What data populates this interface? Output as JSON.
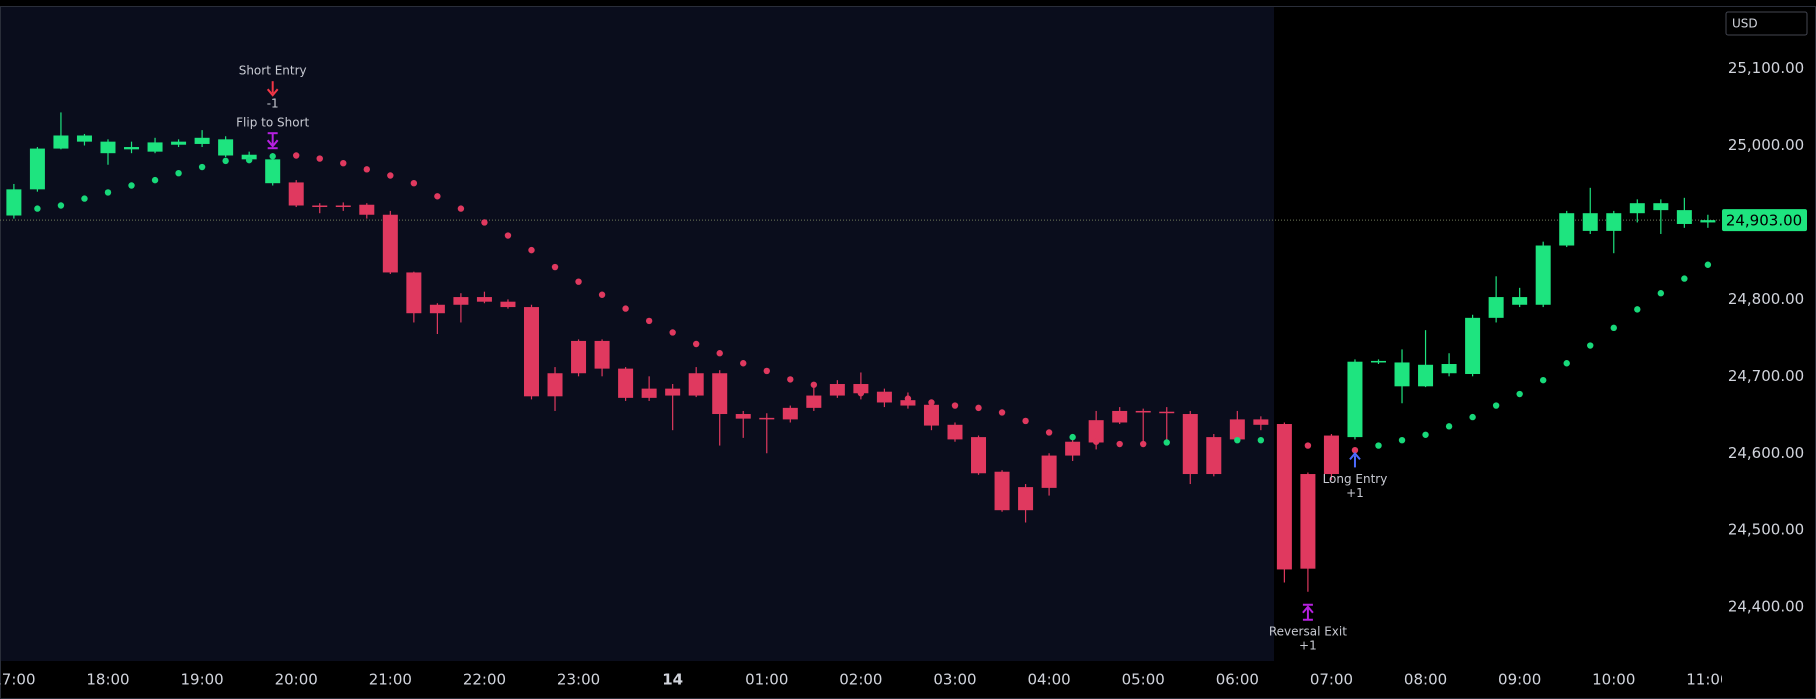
{
  "chart_data": {
    "type": "candlestick",
    "currency": "USD",
    "xlim": [
      -0.59,
      72.6
    ],
    "ylim": [
      24330,
      25180
    ],
    "grid": false,
    "xticks": [
      {
        "value": 0,
        "label": "17:00"
      },
      {
        "value": 4,
        "label": "18:00"
      },
      {
        "value": 8,
        "label": "19:00"
      },
      {
        "value": 12,
        "label": "20:00"
      },
      {
        "value": 16,
        "label": "21:00"
      },
      {
        "value": 20,
        "label": "22:00"
      },
      {
        "value": 24,
        "label": "23:00"
      },
      {
        "value": 28,
        "label": "14"
      },
      {
        "value": 32,
        "label": "01:00"
      },
      {
        "value": 36,
        "label": "02:00"
      },
      {
        "value": 40,
        "label": "03:00"
      },
      {
        "value": 44,
        "label": "04:00"
      },
      {
        "value": 48,
        "label": "05:00"
      },
      {
        "value": 52,
        "label": "06:00"
      },
      {
        "value": 56,
        "label": "07:00"
      },
      {
        "value": 60,
        "label": "08:00"
      },
      {
        "value": 64,
        "label": "09:00"
      },
      {
        "value": 68,
        "label": "10:00"
      },
      {
        "value": 72,
        "label": "11:00"
      }
    ],
    "yticks": [
      {
        "value": 24400,
        "label": "24,400.00"
      },
      {
        "value": 24500,
        "label": "24,500.00"
      },
      {
        "value": 24600,
        "label": "24,600.00"
      },
      {
        "value": 24700,
        "label": "24,700.00"
      },
      {
        "value": 24800,
        "label": "24,800.00"
      },
      {
        "value": 24900,
        "label": "24,900.00"
      },
      {
        "value": 25000,
        "label": "25,000.00"
      },
      {
        "value": 25100,
        "label": "25,100.00"
      }
    ],
    "open": [
      24909,
      24943,
      24996,
      25005,
      24990,
      24995,
      24992,
      25001,
      25002,
      24987,
      24982,
      24951,
      24952,
      24922,
      24922,
      24923,
      24910,
      24835,
      24793,
      24803,
      24803,
      24797,
      24790,
      24704,
      24746,
      24746,
      24710,
      24684,
      24684,
      24704,
      24704,
      24651,
      24646,
      24659,
      24675,
      24690,
      24690,
      24680,
      24669,
      24663,
      24637,
      24621,
      24576,
      24556,
      24555,
      24597,
      24614,
      24655,
      24655,
      24654,
      24651,
      24621,
      24644,
      24644,
      24638,
      24573,
      24573,
      24621,
      24718,
      24718,
      24715,
      24704,
      24703,
      24776,
      24793,
      24793,
      24870,
      24889,
      24912,
      24912,
      24925,
      24916,
      24900
    ],
    "high": [
      24950,
      24998,
      25043,
      25015,
      25008,
      25005,
      25010,
      25008,
      25020,
      25012,
      24992,
      24990,
      24955,
      24925,
      24926,
      24925,
      24915,
      24836,
      24795,
      24808,
      24810,
      24800,
      24793,
      24712,
      24748,
      24748,
      24712,
      24700,
      24690,
      24712,
      24708,
      24655,
      24652,
      24662,
      24685,
      24695,
      24705,
      24684,
      24679,
      24668,
      24640,
      24623,
      24578,
      24560,
      24600,
      24625,
      24655,
      24660,
      24658,
      24660,
      24655,
      24625,
      24655,
      24648,
      24640,
      24575,
      24625,
      24722,
      24722,
      24735,
      24760,
      24730,
      24780,
      24830,
      24815,
      24875,
      24915,
      24945,
      24915,
      24930,
      24930,
      24932,
      24910
    ],
    "low": [
      24905,
      24940,
      24995,
      25000,
      24975,
      24990,
      24990,
      24998,
      24998,
      24985,
      24980,
      24948,
      24920,
      24912,
      24915,
      24905,
      24833,
      24770,
      24755,
      24770,
      24795,
      24788,
      24670,
      24655,
      24700,
      24700,
      24668,
      24668,
      24630,
      24673,
      24610,
      24620,
      24600,
      24640,
      24655,
      24672,
      24670,
      24660,
      24658,
      24630,
      24615,
      24572,
      24524,
      24510,
      24545,
      24590,
      24605,
      24638,
      24610,
      24615,
      24560,
      24570,
      24615,
      24630,
      24432,
      24420,
      24565,
      24618,
      24716,
      24665,
      24686,
      24700,
      24700,
      24770,
      24790,
      24790,
      24868,
      24885,
      24860,
      24900,
      24885,
      24893,
      24893
    ],
    "close": [
      24943,
      24996,
      25013,
      25013,
      25005,
      24998,
      25004,
      25005,
      25010,
      25008,
      24988,
      24982,
      24922,
      24921,
      24921,
      24910,
      24835,
      24782,
      24782,
      24793,
      24797,
      24790,
      24674,
      24674,
      24704,
      24710,
      24672,
      24672,
      24675,
      24675,
      24651,
      24645,
      24644,
      24644,
      24659,
      24675,
      24678,
      24666,
      24662,
      24636,
      24618,
      24574,
      24526,
      24526,
      24597,
      24615,
      24643,
      24640,
      24653,
      24653,
      24573,
      24573,
      24618,
      24637,
      24449,
      24450,
      24623,
      24719,
      24720,
      24687,
      24687,
      24716,
      24776,
      24803,
      24803,
      24870,
      24912,
      24912,
      24889,
      24925,
      24916,
      24898,
      24903
    ],
    "colors": [
      "#1ee47f",
      "#1ee47f",
      "#1ee47f",
      "#1ee47f",
      "#1ee47f",
      "#1ee47f",
      "#1ee47f",
      "#1ee47f",
      "#1ee47f",
      "#1ee47f",
      "#1ee47f",
      "#1ee47f",
      "#e0395f",
      "#e0395f",
      "#e0395f",
      "#e0395f",
      "#e0395f",
      "#e0395f",
      "#e0395f",
      "#e0395f",
      "#e0395f",
      "#e0395f",
      "#e0395f",
      "#e0395f",
      "#e0395f",
      "#e0395f",
      "#e0395f",
      "#e0395f",
      "#e0395f",
      "#e0395f",
      "#e0395f",
      "#e0395f",
      "#e0395f",
      "#e0395f",
      "#e0395f",
      "#e0395f",
      "#e0395f",
      "#e0395f",
      "#e0395f",
      "#e0395f",
      "#e0395f",
      "#e0395f",
      "#e0395f",
      "#e0395f",
      "#e0395f",
      "#e0395f",
      "#e0395f",
      "#e0395f",
      "#e0395f",
      "#e0395f",
      "#e0395f",
      "#e0395f",
      "#e0395f",
      "#e0395f",
      "#e0395f",
      "#e0395f",
      "#e0395f",
      "#1ee47f",
      "#1ee47f",
      "#1ee47f",
      "#1ee47f",
      "#1ee47f",
      "#1ee47f",
      "#1ee47f",
      "#1ee47f",
      "#1ee47f",
      "#1ee47f",
      "#1ee47f",
      "#1ee47f",
      "#1ee47f",
      "#1ee47f",
      "#1ee47f",
      "#1ee47f"
    ],
    "sar": {
      "values": [
        null,
        24918,
        24922,
        24931,
        24939,
        24948,
        24955,
        24964,
        24972,
        24980,
        24981,
        24986,
        24987,
        24983,
        24977,
        24969,
        24961,
        24951,
        24934,
        24918,
        24900,
        24883,
        24864,
        24842,
        24823,
        24806,
        24788,
        24772,
        24757,
        24742,
        24730,
        24717,
        24707,
        24696,
        24689,
        24683,
        24678,
        24675,
        24671,
        24666,
        24662,
        24659,
        24653,
        24642,
        24627,
        24621,
        24615,
        24612,
        24612,
        24614,
        null,
        null,
        24617,
        24617,
        null,
        24610,
        24608,
        24604,
        24610,
        24617,
        24624,
        24635,
        24647,
        24662,
        24677,
        24695,
        24717,
        24740,
        24763,
        24787,
        24808,
        24827,
        24845
      ],
      "colors": [
        null,
        "#18d97a",
        "#18d97a",
        "#18d97a",
        "#18d97a",
        "#18d97a",
        "#18d97a",
        "#18d97a",
        "#18d97a",
        "#18d97a",
        "#18d97a",
        "#18d97a",
        "#e0395f",
        "#e0395f",
        "#e0395f",
        "#e0395f",
        "#e0395f",
        "#e0395f",
        "#e0395f",
        "#e0395f",
        "#e0395f",
        "#e0395f",
        "#e0395f",
        "#e0395f",
        "#e0395f",
        "#e0395f",
        "#e0395f",
        "#e0395f",
        "#e0395f",
        "#e0395f",
        "#e0395f",
        "#e0395f",
        "#e0395f",
        "#e0395f",
        "#e0395f",
        "#e0395f",
        "#e0395f",
        "#e0395f",
        "#e0395f",
        "#e0395f",
        "#e0395f",
        "#e0395f",
        "#e0395f",
        "#e0395f",
        "#e0395f",
        "#18d97a",
        "#e0395f",
        "#e0395f",
        "#e0395f",
        "#18d97a",
        null,
        null,
        "#18d97a",
        "#18d97a",
        null,
        "#e0395f",
        "#e0395f",
        "#e0395f",
        "#18d97a",
        "#18d97a",
        "#18d97a",
        "#18d97a",
        "#18d97a",
        "#18d97a",
        "#18d97a",
        "#18d97a",
        "#18d97a",
        "#18d97a",
        "#18d97a",
        "#18d97a",
        "#18d97a",
        "#18d97a",
        "#18d97a"
      ]
    },
    "last_price": {
      "value": 24903,
      "label": "24,903.00"
    },
    "signals": [
      {
        "x": 11,
        "place": "above",
        "marker": "arrow",
        "color": "#f23645",
        "texts": [
          "Short Entry",
          "-1"
        ]
      },
      {
        "x": 11,
        "place": "above",
        "marker": "bar-arrow",
        "color": "#b620e0",
        "texts": [
          "Flip to Short"
        ]
      },
      {
        "x": 55,
        "place": "below",
        "marker": "bar-arrow",
        "color": "#b620e0",
        "texts": [
          "Reversal Exit",
          "+1"
        ]
      },
      {
        "x": 57,
        "place": "below",
        "marker": "arrow",
        "color": "#4d6bff",
        "texts": [
          "Long Entry",
          "+1"
        ]
      }
    ]
  }
}
